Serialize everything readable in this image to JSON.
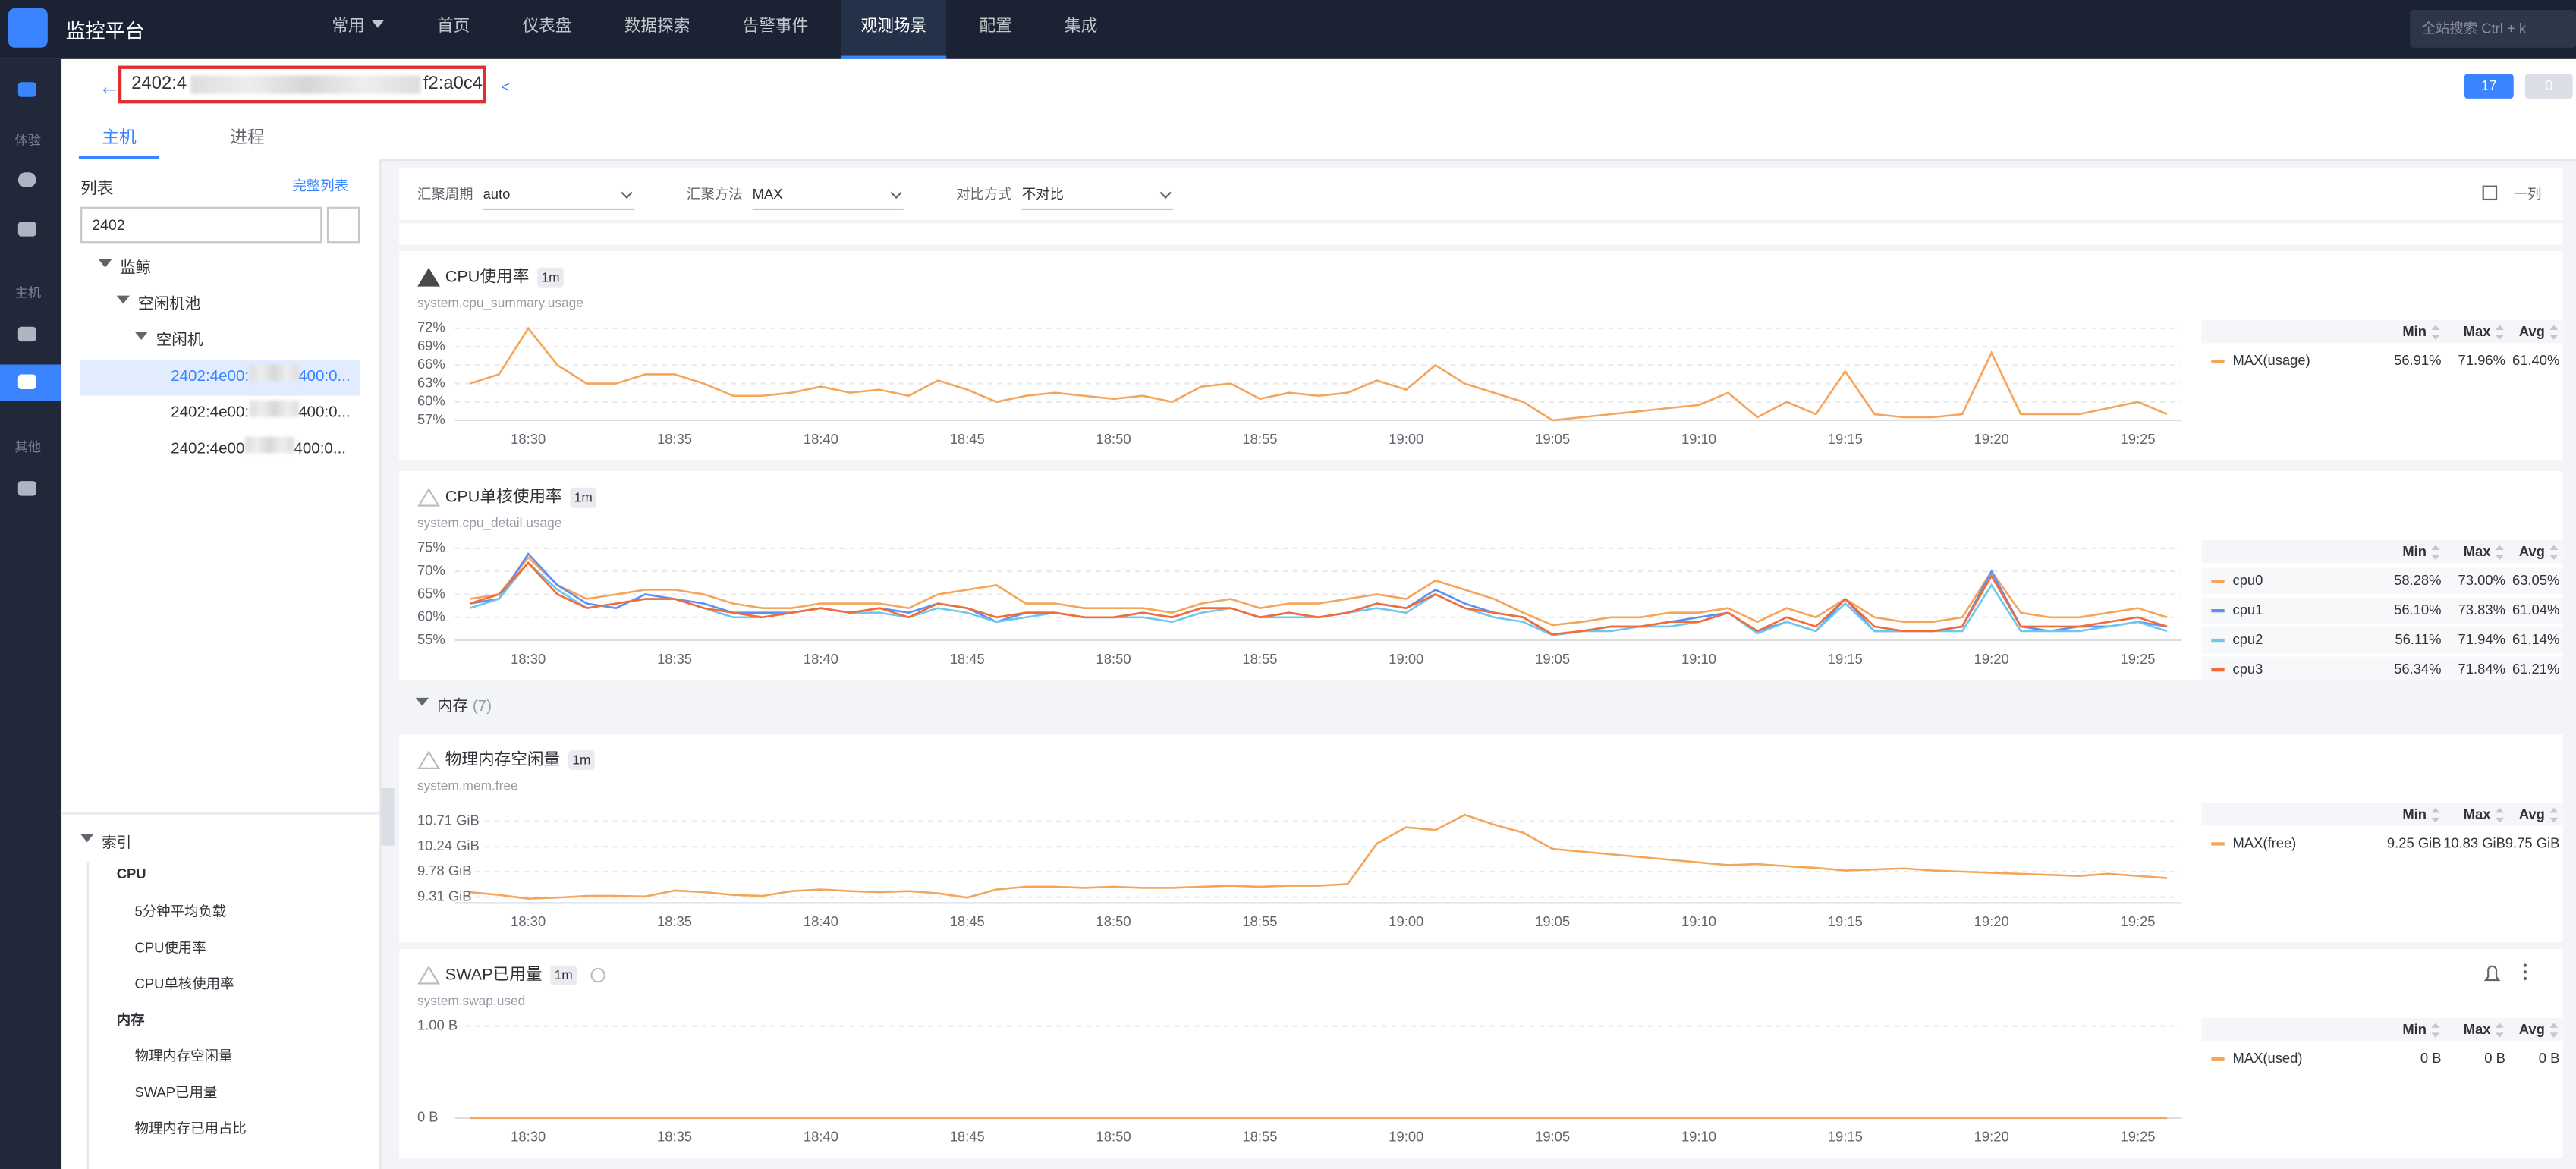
{
  "header": {
    "brand": "监控平台",
    "nav": [
      {
        "label": "常用"
      },
      {
        "label": "首页"
      },
      {
        "label": "仪表盘"
      },
      {
        "label": "数据探索"
      },
      {
        "label": "告警事件"
      },
      {
        "label": "观测场景",
        "active": true
      },
      {
        "label": "配置"
      },
      {
        "label": "集成"
      }
    ],
    "search_placeholder": "全站搜索 Ctrl + k"
  },
  "sidebar": {
    "groups": [
      "体验",
      "主机",
      "其他"
    ]
  },
  "host": {
    "title_start": "2402:4",
    "title_end": "f2:a0c4",
    "strategy_count": "17",
    "alert_count": "0"
  },
  "tabs": [
    "主机",
    "进程"
  ],
  "list": {
    "title": "列表",
    "full_link": "完整列表",
    "search": "2402",
    "tree": [
      {
        "label": "监鲸",
        "children": [
          {
            "label": "空闲机池",
            "children": [
              {
                "label": "空闲机",
                "children": [
                  {
                    "prefix": "2402:4e00:",
                    "suffix": "400:0...",
                    "selected": true
                  },
                  {
                    "prefix": "2402:4e00:",
                    "suffix": "400:0..."
                  },
                  {
                    "prefix": "2402:4e00",
                    "suffix": "400:0..."
                  }
                ]
              }
            ]
          }
        ]
      }
    ]
  },
  "index": {
    "title": "索引",
    "groups": [
      {
        "heading": "CPU",
        "items": [
          "5分钟平均负载",
          "CPU使用率",
          "CPU单核使用率"
        ]
      },
      {
        "heading": "内存",
        "items": [
          "物理内存空闲量",
          "SWAP已用量",
          "物理内存已用占比"
        ]
      }
    ]
  },
  "toolbar": {
    "period_label": "汇聚周期",
    "period": "auto",
    "method_label": "汇聚方法",
    "method": "MAX",
    "compare_label": "对比方式",
    "compare": "不对比",
    "layout": "一列"
  },
  "section": {
    "name": "内存",
    "count": "(7)"
  },
  "chart_data": [
    {
      "type": "line",
      "title": "CPU使用率",
      "interval": "1m",
      "metric": "system.cpu_summary.usage",
      "alert_active": true,
      "categories": [
        null,
        null,
        "18:30",
        null,
        null,
        null,
        null,
        "18:35",
        null,
        null,
        null,
        null,
        "18:40",
        null,
        null,
        null,
        null,
        "18:45",
        null,
        null,
        null,
        null,
        "18:50",
        null,
        null,
        null,
        null,
        "18:55",
        null,
        null,
        null,
        null,
        "19:00",
        null,
        null,
        null,
        null,
        "19:05",
        null,
        null,
        null,
        null,
        "19:10",
        null,
        null,
        null,
        null,
        "19:15",
        null,
        null,
        null,
        null,
        "19:20",
        null,
        null,
        null,
        null,
        "19:25",
        null
      ],
      "ylim": [
        57,
        72
      ],
      "yticks": [
        {
          "value": 57,
          "label": "57%"
        },
        {
          "value": 60,
          "label": "60%"
        },
        {
          "value": 63,
          "label": "63%"
        },
        {
          "value": 66,
          "label": "66%"
        },
        {
          "value": 69,
          "label": "69%"
        },
        {
          "value": 72,
          "label": "72%"
        }
      ],
      "legend_columns": [
        "Min",
        "Max",
        "Avg"
      ],
      "series": [
        {
          "name": "MAX(usage)",
          "color": "#f5a55a",
          "stats": [
            "56.91%",
            "71.96%",
            "61.40%"
          ],
          "values": [
            63,
            64.5,
            72,
            66,
            63,
            63,
            64.5,
            64.5,
            63,
            61,
            61,
            61.5,
            62.5,
            61.5,
            62,
            61,
            63.5,
            62,
            60,
            61,
            61.5,
            61,
            60.5,
            61,
            60,
            62.5,
            63,
            60.5,
            61.5,
            61,
            61.5,
            63.5,
            62,
            66,
            63,
            61.5,
            60,
            57,
            57.5,
            58,
            58.5,
            59,
            59.5,
            61.5,
            57.5,
            60,
            58,
            65,
            58,
            57.5,
            57.5,
            58,
            68,
            58,
            58,
            58,
            59,
            60,
            58
          ]
        }
      ]
    },
    {
      "type": "line",
      "title": "CPU单核使用率",
      "interval": "1m",
      "metric": "system.cpu_detail.usage",
      "alert_active": false,
      "categories": [
        null,
        null,
        "18:30",
        null,
        null,
        null,
        null,
        "18:35",
        null,
        null,
        null,
        null,
        "18:40",
        null,
        null,
        null,
        null,
        "18:45",
        null,
        null,
        null,
        null,
        "18:50",
        null,
        null,
        null,
        null,
        "18:55",
        null,
        null,
        null,
        null,
        "19:00",
        null,
        null,
        null,
        null,
        "19:05",
        null,
        null,
        null,
        null,
        "19:10",
        null,
        null,
        null,
        null,
        "19:15",
        null,
        null,
        null,
        null,
        "19:20",
        null,
        null,
        null,
        null,
        "19:25",
        null
      ],
      "ylim": [
        55,
        75
      ],
      "yticks": [
        {
          "value": 55,
          "label": "55%"
        },
        {
          "value": 60,
          "label": "60%"
        },
        {
          "value": 65,
          "label": "65%"
        },
        {
          "value": 70,
          "label": "70%"
        },
        {
          "value": 75,
          "label": "75%"
        }
      ],
      "legend_columns": [
        "Min",
        "Max",
        "Avg"
      ],
      "series": [
        {
          "name": "cpu0",
          "color": "#f5a55a",
          "stats": [
            "58.28%",
            "73.00%",
            "63.05%"
          ],
          "values": [
            64,
            65,
            73,
            67,
            64,
            65,
            66,
            66,
            65,
            63,
            62,
            62,
            63,
            63,
            63,
            62,
            65,
            66,
            67,
            63,
            63,
            62,
            62,
            62,
            61,
            63,
            64,
            62,
            63,
            63,
            64,
            65,
            64,
            68,
            66,
            64,
            61,
            58.3,
            59,
            60,
            60,
            61,
            61,
            62,
            59,
            62,
            60,
            64,
            60,
            59,
            59,
            60,
            70,
            61,
            60,
            60,
            61,
            62,
            60
          ]
        },
        {
          "name": "cpu1",
          "color": "#5b8ff9",
          "stats": [
            "56.10%",
            "73.83%",
            "61.04%"
          ],
          "values": [
            63,
            64,
            73.8,
            67,
            63,
            62,
            65,
            64,
            63,
            61,
            61,
            61,
            62,
            61,
            62,
            61,
            63,
            62,
            59,
            61,
            61,
            60,
            60,
            61,
            60,
            62,
            62,
            60,
            61,
            60,
            61,
            63,
            62,
            66,
            63,
            61,
            60,
            56.1,
            57,
            58,
            58,
            59,
            60,
            61,
            57,
            59,
            57,
            64,
            57,
            57,
            57,
            58,
            70,
            58,
            57,
            58,
            58,
            59,
            58
          ]
        },
        {
          "name": "cpu2",
          "color": "#6dc8ec",
          "stats": [
            "56.11%",
            "71.94%",
            "61.14%"
          ],
          "values": [
            62,
            64,
            71.9,
            66,
            62,
            63,
            64,
            64,
            62,
            60,
            60,
            61,
            62,
            61,
            61,
            60,
            62,
            61,
            59,
            60,
            61,
            60,
            60,
            60,
            59,
            61,
            62,
            60,
            60,
            60,
            61,
            62,
            61,
            65,
            62,
            60,
            59,
            56.1,
            57,
            57,
            58,
            58,
            59,
            61,
            56.5,
            59,
            57,
            63,
            57,
            57,
            57,
            57,
            67,
            57,
            57,
            57,
            58,
            59,
            57
          ]
        },
        {
          "name": "cpu3",
          "color": "#f46b36",
          "stats": [
            "56.34%",
            "71.84%",
            "61.21%"
          ],
          "values": [
            63,
            65,
            71.8,
            65,
            62,
            63,
            64,
            64,
            62,
            61,
            60,
            61,
            62,
            61,
            62,
            60,
            63,
            62,
            60,
            61,
            61,
            60,
            60,
            61,
            60,
            62,
            62,
            60,
            61,
            60,
            61,
            63,
            62,
            65,
            62,
            61,
            60,
            56.3,
            57,
            58,
            58,
            59,
            59,
            61,
            57,
            60,
            58,
            64,
            58,
            57,
            57,
            58,
            69,
            58,
            58,
            58,
            59,
            60,
            58
          ]
        }
      ]
    },
    {
      "type": "line",
      "title": "物理内存空闲量",
      "interval": "1m",
      "metric": "system.mem.free",
      "alert_active": false,
      "categories": [
        null,
        null,
        "18:30",
        null,
        null,
        null,
        null,
        "18:35",
        null,
        null,
        null,
        null,
        "18:40",
        null,
        null,
        null,
        null,
        "18:45",
        null,
        null,
        null,
        null,
        "18:50",
        null,
        null,
        null,
        null,
        "18:55",
        null,
        null,
        null,
        null,
        "19:00",
        null,
        null,
        null,
        null,
        "19:05",
        null,
        null,
        null,
        null,
        "19:10",
        null,
        null,
        null,
        null,
        "19:15",
        null,
        null,
        null,
        null,
        "19:20",
        null,
        null,
        null,
        null,
        "19:25",
        null
      ],
      "ylim": [
        9.2,
        10.9
      ],
      "yticks": [
        {
          "value": 9.31,
          "label": "9.31 GiB"
        },
        {
          "value": 9.78,
          "label": "9.78 GiB"
        },
        {
          "value": 10.24,
          "label": "10.24 GiB"
        },
        {
          "value": 10.71,
          "label": "10.71 GiB"
        }
      ],
      "legend_columns": [
        "Min",
        "Max",
        "Avg"
      ],
      "series": [
        {
          "name": "MAX(free)",
          "color": "#f5a55a",
          "stats": [
            "9.25 GiB",
            "10.83 GiB",
            "9.75 GiB"
          ],
          "values": [
            9.4,
            9.35,
            9.28,
            9.3,
            9.33,
            9.33,
            9.32,
            9.43,
            9.4,
            9.35,
            9.33,
            9.42,
            9.45,
            9.42,
            9.4,
            9.42,
            9.38,
            9.3,
            9.45,
            9.5,
            9.5,
            9.48,
            9.5,
            9.48,
            9.48,
            9.5,
            9.52,
            9.5,
            9.52,
            9.52,
            9.55,
            10.3,
            10.6,
            10.55,
            10.83,
            10.65,
            10.5,
            10.2,
            10.15,
            10.1,
            10.05,
            10,
            9.95,
            9.9,
            9.92,
            9.88,
            9.85,
            9.8,
            9.82,
            9.84,
            9.8,
            9.78,
            9.76,
            9.74,
            9.72,
            9.7,
            9.74,
            9.7,
            9.66
          ]
        }
      ]
    },
    {
      "type": "line",
      "title": "SWAP已用量",
      "interval": "1m",
      "metric": "system.swap.used",
      "alert_active": false,
      "categories": [
        null,
        null,
        "18:30",
        null,
        null,
        null,
        null,
        "18:35",
        null,
        null,
        null,
        null,
        "18:40",
        null,
        null,
        null,
        null,
        "18:45",
        null,
        null,
        null,
        null,
        "18:50",
        null,
        null,
        null,
        null,
        "18:55",
        null,
        null,
        null,
        null,
        "19:00",
        null,
        null,
        null,
        null,
        "19:05",
        null,
        null,
        null,
        null,
        "19:10",
        null,
        null,
        null,
        null,
        "19:15",
        null,
        null,
        null,
        null,
        "19:20",
        null,
        null,
        null,
        null,
        "19:25",
        null
      ],
      "ylim": [
        0,
        1
      ],
      "yticks": [
        {
          "value": 0,
          "label": "0 B"
        },
        {
          "value": 1,
          "label": "1.00 B"
        }
      ],
      "legend_columns": [
        "Min",
        "Max",
        "Avg"
      ],
      "series": [
        {
          "name": "MAX(used)",
          "color": "#f5a55a",
          "stats": [
            "0 B",
            "0 B",
            "0 B"
          ],
          "values": [
            0,
            0,
            0,
            0,
            0,
            0,
            0,
            0,
            0,
            0,
            0,
            0,
            0,
            0,
            0,
            0,
            0,
            0,
            0,
            0,
            0,
            0,
            0,
            0,
            0,
            0,
            0,
            0,
            0,
            0,
            0,
            0,
            0,
            0,
            0,
            0,
            0,
            0,
            0,
            0,
            0,
            0,
            0,
            0,
            0,
            0,
            0,
            0,
            0,
            0,
            0,
            0,
            0,
            0,
            0,
            0,
            0,
            0,
            0
          ]
        }
      ]
    }
  ]
}
